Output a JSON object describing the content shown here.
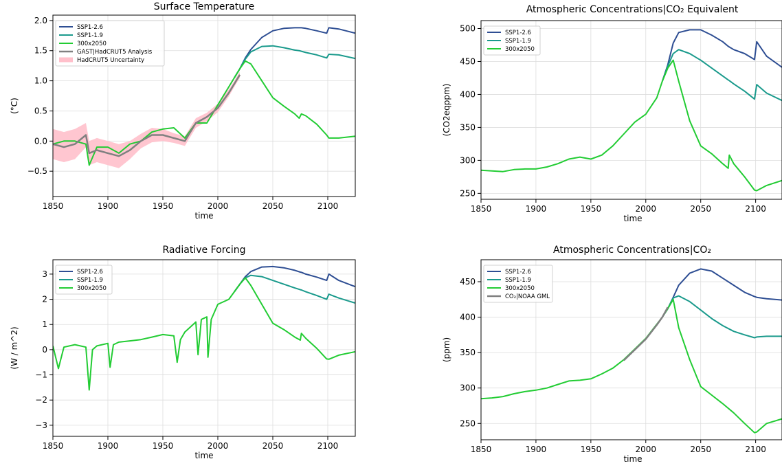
{
  "chart_data": [
    {
      "type": "line",
      "title": "Surface Temperature",
      "xlabel": "time",
      "ylabel": "(°C)",
      "x": [
        1850,
        1860,
        1870,
        1880,
        1883,
        1890,
        1900,
        1910,
        1920,
        1930,
        1940,
        1950,
        1960,
        1970,
        1980,
        1990,
        2000,
        2010,
        2015,
        2020,
        2025,
        2030,
        2040,
        2050,
        2060,
        2070,
        2074,
        2076,
        2080,
        2090,
        2099,
        2101,
        2110,
        2125
      ],
      "xlim": [
        1850,
        2125
      ],
      "xticks": [
        1850,
        1900,
        1950,
        2000,
        2050,
        2100
      ],
      "ylim": [
        -0.92,
        2.09
      ],
      "yticks": [
        {
          "value": -0.5,
          "label": "−0.5"
        },
        {
          "value": 0,
          "label": "0.0"
        },
        {
          "value": 0.5,
          "label": "0.5"
        },
        {
          "value": 1,
          "label": "1.0"
        },
        {
          "value": 1.5,
          "label": "1.5"
        },
        {
          "value": 2,
          "label": "2.0"
        }
      ],
      "grid": true,
      "legend": "upper left",
      "series": [
        {
          "name": "SSP1-2.6",
          "color": "#2e4e93",
          "values": [
            null,
            null,
            null,
            null,
            null,
            null,
            null,
            null,
            null,
            null,
            null,
            null,
            null,
            null,
            null,
            null,
            null,
            null,
            1.05,
            1.2,
            1.38,
            1.52,
            1.72,
            1.83,
            1.87,
            1.88,
            1.88,
            1.88,
            1.87,
            1.83,
            1.79,
            1.88,
            1.86,
            1.79
          ]
        },
        {
          "name": "SSP1-1.9",
          "color": "#1a9a8c",
          "values": [
            null,
            null,
            null,
            null,
            null,
            null,
            null,
            null,
            null,
            null,
            null,
            null,
            null,
            null,
            null,
            null,
            null,
            null,
            1.05,
            1.2,
            1.36,
            1.48,
            1.57,
            1.58,
            1.55,
            1.51,
            1.5,
            1.49,
            1.47,
            1.43,
            1.38,
            1.44,
            1.43,
            1.37
          ]
        },
        {
          "name": "300x2050",
          "color": "#22cc33",
          "values": [
            -0.05,
            0.0,
            0.0,
            -0.05,
            -0.4,
            -0.1,
            -0.1,
            -0.2,
            -0.05,
            0.0,
            0.15,
            0.2,
            0.22,
            0.05,
            0.3,
            0.3,
            0.6,
            0.9,
            1.05,
            1.2,
            1.33,
            1.28,
            1.0,
            0.72,
            0.58,
            0.45,
            0.38,
            0.45,
            0.42,
            0.28,
            0.1,
            0.05,
            0.05,
            0.08
          ]
        },
        {
          "name": "GAST|HadCRUT5 Analysis",
          "color": "#808080",
          "values": [
            -0.05,
            -0.1,
            -0.05,
            0.1,
            -0.2,
            -0.15,
            -0.2,
            -0.25,
            -0.15,
            0.0,
            0.1,
            0.1,
            0.05,
            0.0,
            0.3,
            0.4,
            0.55,
            0.8,
            0.95,
            1.1,
            null,
            null,
            null,
            null,
            null,
            null,
            null,
            null,
            null,
            null,
            null,
            null,
            null,
            null
          ]
        },
        {
          "name": "HadCRUT5 Uncertainty",
          "color": "#ffc0cb",
          "type": "band",
          "upper": [
            0.2,
            0.15,
            0.2,
            0.3,
            0.0,
            0.05,
            0.0,
            -0.05,
            0.0,
            0.12,
            0.22,
            0.2,
            0.13,
            0.08,
            0.38,
            0.47,
            0.62,
            0.86,
            1.0,
            1.15,
            null,
            null,
            null,
            null,
            null,
            null,
            null,
            null,
            null,
            null,
            null,
            null,
            null,
            null
          ],
          "lower": [
            -0.3,
            -0.35,
            -0.3,
            -0.1,
            -0.4,
            -0.35,
            -0.4,
            -0.45,
            -0.3,
            -0.12,
            -0.02,
            0.0,
            -0.03,
            -0.08,
            0.22,
            0.33,
            0.48,
            0.74,
            0.9,
            1.05,
            null,
            null,
            null,
            null,
            null,
            null,
            null,
            null,
            null,
            null,
            null,
            null,
            null,
            null
          ]
        }
      ]
    },
    {
      "type": "line",
      "title": "Atmospheric Concentrations|CO₂ Equivalent",
      "xlabel": "time",
      "ylabel": "(CO2eqppm)",
      "x": [
        1850,
        1860,
        1870,
        1880,
        1890,
        1900,
        1910,
        1920,
        1930,
        1940,
        1950,
        1960,
        1970,
        1980,
        1990,
        2000,
        2010,
        2015,
        2020,
        2025,
        2030,
        2040,
        2050,
        2060,
        2070,
        2075,
        2076,
        2080,
        2090,
        2099,
        2101,
        2110,
        2125
      ],
      "xlim": [
        1850,
        2124
      ],
      "xticks": [
        1850,
        1900,
        1950,
        2000,
        2050,
        2100
      ],
      "ylim": [
        241,
        512
      ],
      "yticks": [
        250,
        300,
        350,
        400,
        450,
        500
      ],
      "grid": true,
      "legend": "upper left",
      "series": [
        {
          "name": "SSP1-2.6",
          "color": "#2e4e93",
          "values": [
            null,
            null,
            null,
            null,
            null,
            null,
            null,
            null,
            null,
            null,
            null,
            null,
            null,
            null,
            null,
            null,
            null,
            420,
            445,
            478,
            494,
            498,
            498,
            490,
            480,
            473,
            472,
            468,
            462,
            453,
            480,
            458,
            440
          ]
        },
        {
          "name": "SSP1-1.9",
          "color": "#1a9a8c",
          "values": [
            null,
            null,
            null,
            null,
            null,
            null,
            null,
            null,
            null,
            null,
            null,
            null,
            null,
            null,
            null,
            null,
            null,
            420,
            443,
            462,
            468,
            462,
            452,
            440,
            428,
            422,
            421,
            416,
            405,
            393,
            415,
            402,
            390
          ]
        },
        {
          "name": "300x2050",
          "color": "#22cc33",
          "values": [
            285,
            284,
            283,
            286,
            287,
            287,
            290,
            295,
            302,
            305,
            302,
            308,
            322,
            340,
            358,
            370,
            395,
            420,
            440,
            452,
            420,
            360,
            322,
            310,
            295,
            288,
            308,
            295,
            275,
            255,
            254,
            262,
            270
          ]
        }
      ]
    },
    {
      "type": "line",
      "title": "Radiative Forcing",
      "xlabel": "time",
      "ylabel": "(W / m^2)",
      "x": [
        1850,
        1855,
        1860,
        1870,
        1880,
        1883,
        1886,
        1890,
        1900,
        1902,
        1905,
        1910,
        1920,
        1930,
        1940,
        1950,
        1960,
        1963,
        1966,
        1970,
        1980,
        1982,
        1985,
        1990,
        1991,
        1994,
        2000,
        2010,
        2015,
        2020,
        2025,
        2030,
        2040,
        2050,
        2060,
        2070,
        2075,
        2076,
        2080,
        2090,
        2099,
        2101,
        2110,
        2125
      ],
      "xlim": [
        1850,
        2125
      ],
      "xticks": [
        1850,
        1900,
        1950,
        2000,
        2050,
        2100
      ],
      "ylim": [
        -3.44,
        3.57
      ],
      "yticks": [
        {
          "value": -3,
          "label": "−3"
        },
        {
          "value": -2,
          "label": "−2"
        },
        {
          "value": -1,
          "label": "−1"
        },
        0,
        1,
        2,
        3
      ],
      "grid": true,
      "legend": "upper left",
      "series": [
        {
          "name": "SSP1-2.6",
          "color": "#2e4e93",
          "values": [
            null,
            null,
            null,
            null,
            null,
            null,
            null,
            null,
            null,
            null,
            null,
            null,
            null,
            null,
            null,
            null,
            null,
            null,
            null,
            null,
            null,
            null,
            null,
            null,
            null,
            null,
            null,
            null,
            2.3,
            2.6,
            2.9,
            3.1,
            3.28,
            3.3,
            3.25,
            3.15,
            3.08,
            3.07,
            3.0,
            2.88,
            2.75,
            3.0,
            2.75,
            2.5
          ]
        },
        {
          "name": "SSP1-1.9",
          "color": "#1a9a8c",
          "values": [
            null,
            null,
            null,
            null,
            null,
            null,
            null,
            null,
            null,
            null,
            null,
            null,
            null,
            null,
            null,
            null,
            null,
            null,
            null,
            null,
            null,
            null,
            null,
            null,
            null,
            null,
            null,
            null,
            2.3,
            2.6,
            2.85,
            2.95,
            2.9,
            2.75,
            2.6,
            2.45,
            2.38,
            2.37,
            2.3,
            2.15,
            2.0,
            2.2,
            2.05,
            1.85
          ]
        },
        {
          "name": "300x2050",
          "color": "#22cc33",
          "values": [
            0.15,
            -0.75,
            0.1,
            0.2,
            0.1,
            -1.6,
            0.0,
            0.15,
            0.25,
            -0.7,
            0.2,
            0.3,
            0.35,
            0.4,
            0.5,
            0.6,
            0.55,
            -0.5,
            0.4,
            0.7,
            1.1,
            -0.2,
            1.2,
            1.3,
            -0.3,
            1.2,
            1.8,
            2.0,
            2.3,
            2.6,
            2.85,
            2.55,
            1.8,
            1.05,
            0.8,
            0.5,
            0.38,
            0.65,
            0.45,
            0.05,
            -0.37,
            -0.38,
            -0.22,
            -0.08
          ]
        }
      ]
    },
    {
      "type": "line",
      "title": "Atmospheric Concentrations|CO₂",
      "xlabel": "time",
      "ylabel": "(ppm)",
      "x": [
        1850,
        1860,
        1870,
        1880,
        1890,
        1900,
        1910,
        1920,
        1930,
        1940,
        1950,
        1960,
        1970,
        1980,
        1990,
        2000,
        2010,
        2015,
        2020,
        2025,
        2030,
        2040,
        2050,
        2060,
        2070,
        2080,
        2090,
        2099,
        2101,
        2110,
        2125
      ],
      "xlim": [
        1850,
        2124
      ],
      "xticks": [
        1850,
        1900,
        1950,
        2000,
        2050,
        2100
      ],
      "ylim": [
        227,
        481
      ],
      "yticks": [
        250,
        300,
        350,
        400,
        450
      ],
      "grid": true,
      "legend": "upper left",
      "series": [
        {
          "name": "SSP1-2.6",
          "color": "#2e4e93",
          "values": [
            null,
            null,
            null,
            null,
            null,
            null,
            null,
            null,
            null,
            null,
            null,
            null,
            null,
            null,
            null,
            null,
            null,
            400,
            412,
            428,
            445,
            462,
            468,
            465,
            455,
            445,
            435,
            429,
            428,
            426,
            424
          ]
        },
        {
          "name": "SSP1-1.9",
          "color": "#1a9a8c",
          "values": [
            null,
            null,
            null,
            null,
            null,
            null,
            null,
            null,
            null,
            null,
            null,
            null,
            null,
            null,
            null,
            null,
            null,
            400,
            412,
            427,
            430,
            422,
            410,
            398,
            388,
            380,
            375,
            371,
            372,
            373,
            373
          ]
        },
        {
          "name": "300x2050",
          "color": "#22cc33",
          "values": [
            285,
            286,
            288,
            292,
            295,
            297,
            300,
            305,
            310,
            311,
            313,
            320,
            328,
            340,
            355,
            370,
            390,
            400,
            412,
            425,
            385,
            340,
            302,
            290,
            278,
            265,
            250,
            237,
            238,
            250,
            257
          ]
        },
        {
          "name": "CO₂|NOAA GML",
          "color": "#808080",
          "values": [
            null,
            null,
            null,
            null,
            null,
            null,
            null,
            null,
            null,
            null,
            null,
            null,
            null,
            339,
            354,
            369,
            389,
            400,
            414,
            null,
            null,
            null,
            null,
            null,
            null,
            null,
            null,
            null,
            null,
            null,
            null
          ]
        }
      ]
    }
  ]
}
